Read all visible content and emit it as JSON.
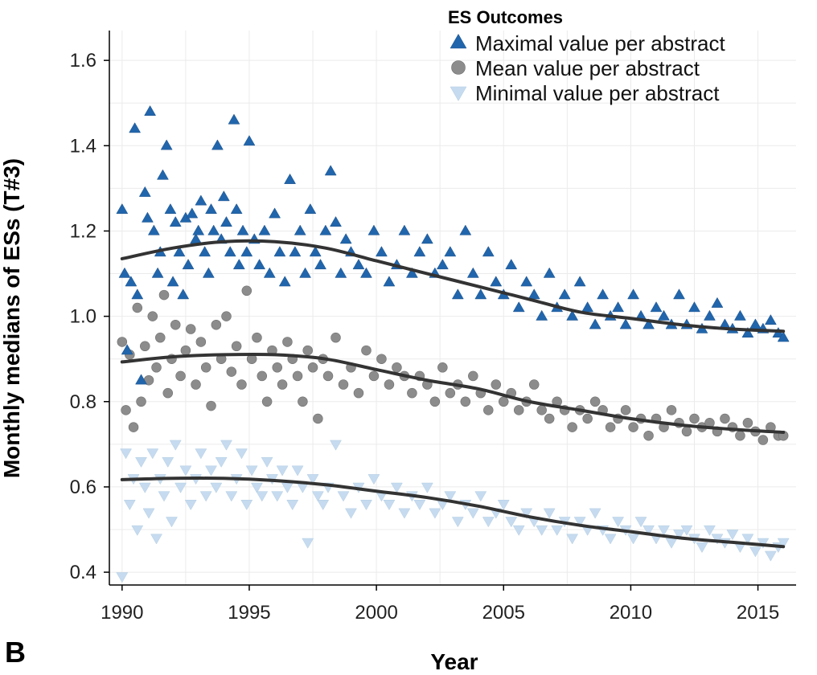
{
  "panel_label": "B",
  "chart_data": {
    "type": "scatter",
    "title": "",
    "xlabel": "Year",
    "ylabel": "Monthly medians of ESs (T#3)",
    "xlim": [
      1989.5,
      2016.5
    ],
    "ylim": [
      0.37,
      1.67
    ],
    "x_ticks": [
      1990,
      1995,
      2000,
      2005,
      2010,
      2015
    ],
    "y_ticks": [
      0.4,
      0.6,
      0.8,
      1.0,
      1.2,
      1.4,
      1.6
    ],
    "y_tick_labels": [
      "0.4",
      "0.6",
      "0.8",
      "1.0",
      "1.2",
      "1.4",
      "1.6"
    ],
    "grid": true,
    "legend": {
      "title": "ES Outcomes",
      "position": "top-right"
    },
    "series": [
      {
        "name": "Maximal value per abstract",
        "marker": "triangle-up",
        "color": "#2166ac",
        "trend": [
          [
            1990,
            1.135
          ],
          [
            1992,
            1.16
          ],
          [
            1994,
            1.175
          ],
          [
            1996,
            1.175
          ],
          [
            1998,
            1.16
          ],
          [
            2000,
            1.13
          ],
          [
            2002,
            1.1
          ],
          [
            2004,
            1.07
          ],
          [
            2006,
            1.04
          ],
          [
            2008,
            1.01
          ],
          [
            2010,
            0.995
          ],
          [
            2012,
            0.98
          ],
          [
            2014,
            0.97
          ],
          [
            2016,
            0.965
          ]
        ],
        "x": [
          1990.0,
          1990.1,
          1990.2,
          1990.35,
          1990.5,
          1990.6,
          1990.75,
          1990.9,
          1991.0,
          1991.1,
          1991.25,
          1991.4,
          1991.5,
          1991.6,
          1991.75,
          1991.9,
          1992.0,
          1992.1,
          1992.25,
          1992.4,
          1992.5,
          1992.6,
          1992.75,
          1992.9,
          1993.0,
          1993.1,
          1993.25,
          1993.4,
          1993.5,
          1993.6,
          1993.75,
          1993.9,
          1994.0,
          1994.1,
          1994.25,
          1994.4,
          1994.5,
          1994.6,
          1994.75,
          1994.9,
          1995.0,
          1995.2,
          1995.4,
          1995.6,
          1995.8,
          1996.0,
          1996.2,
          1996.4,
          1996.6,
          1996.8,
          1997.0,
          1997.2,
          1997.4,
          1997.6,
          1997.8,
          1998.0,
          1998.2,
          1998.4,
          1998.6,
          1998.8,
          1999.0,
          1999.3,
          1999.6,
          1999.9,
          2000.2,
          2000.5,
          2000.8,
          2001.1,
          2001.4,
          2001.7,
          2002.0,
          2002.3,
          2002.6,
          2002.9,
          2003.2,
          2003.5,
          2003.8,
          2004.1,
          2004.4,
          2004.7,
          2005.0,
          2005.3,
          2005.6,
          2005.9,
          2006.2,
          2006.5,
          2006.8,
          2007.1,
          2007.4,
          2007.7,
          2008.0,
          2008.3,
          2008.6,
          2008.9,
          2009.2,
          2009.5,
          2009.8,
          2010.1,
          2010.4,
          2010.7,
          2011.0,
          2011.3,
          2011.6,
          2011.9,
          2012.2,
          2012.5,
          2012.8,
          2013.1,
          2013.4,
          2013.7,
          2014.0,
          2014.3,
          2014.6,
          2014.9,
          2015.2,
          2015.5,
          2015.8,
          2016.0
        ],
        "y": [
          1.25,
          1.1,
          0.92,
          1.08,
          1.44,
          1.05,
          0.85,
          1.29,
          1.23,
          1.48,
          1.2,
          1.1,
          1.15,
          1.33,
          1.4,
          1.25,
          1.08,
          1.22,
          1.15,
          1.05,
          1.23,
          1.12,
          1.24,
          1.18,
          1.2,
          1.27,
          1.15,
          1.1,
          1.25,
          1.2,
          1.4,
          1.18,
          1.28,
          1.22,
          1.15,
          1.46,
          1.25,
          1.12,
          1.2,
          1.15,
          1.41,
          1.18,
          1.12,
          1.2,
          1.1,
          1.24,
          1.15,
          1.08,
          1.32,
          1.15,
          1.2,
          1.1,
          1.25,
          1.15,
          1.12,
          1.2,
          1.34,
          1.22,
          1.1,
          1.18,
          1.15,
          1.12,
          1.1,
          1.2,
          1.15,
          1.08,
          1.12,
          1.2,
          1.1,
          1.15,
          1.18,
          1.1,
          1.12,
          1.15,
          1.05,
          1.2,
          1.1,
          1.05,
          1.15,
          1.08,
          1.05,
          1.12,
          1.02,
          1.08,
          1.05,
          1.0,
          1.1,
          1.02,
          1.05,
          1.0,
          1.08,
          1.02,
          0.98,
          1.05,
          1.0,
          1.02,
          0.98,
          1.05,
          1.0,
          0.98,
          1.02,
          1.0,
          0.98,
          1.05,
          0.98,
          1.02,
          0.97,
          1.0,
          1.03,
          0.98,
          0.97,
          1.0,
          0.96,
          0.98,
          0.97,
          0.99,
          0.96,
          0.95
        ]
      },
      {
        "name": "Mean value per abstract",
        "marker": "circle",
        "color": "#8c8c8c",
        "trend": [
          [
            1990,
            0.893
          ],
          [
            1992,
            0.905
          ],
          [
            1994,
            0.91
          ],
          [
            1996,
            0.91
          ],
          [
            1998,
            0.9
          ],
          [
            2000,
            0.875
          ],
          [
            2002,
            0.85
          ],
          [
            2004,
            0.83
          ],
          [
            2006,
            0.8
          ],
          [
            2008,
            0.78
          ],
          [
            2010,
            0.76
          ],
          [
            2012,
            0.745
          ],
          [
            2014,
            0.735
          ],
          [
            2016,
            0.728
          ]
        ],
        "x": [
          1990.0,
          1990.15,
          1990.3,
          1990.45,
          1990.6,
          1990.75,
          1990.9,
          1991.05,
          1991.2,
          1991.35,
          1991.5,
          1991.65,
          1991.8,
          1991.95,
          1992.1,
          1992.3,
          1992.5,
          1992.7,
          1992.9,
          1993.1,
          1993.3,
          1993.5,
          1993.7,
          1993.9,
          1994.1,
          1994.3,
          1994.5,
          1994.7,
          1994.9,
          1995.1,
          1995.3,
          1995.5,
          1995.7,
          1995.9,
          1996.1,
          1996.3,
          1996.5,
          1996.7,
          1996.9,
          1997.1,
          1997.3,
          1997.5,
          1997.7,
          1997.9,
          1998.1,
          1998.4,
          1998.7,
          1999.0,
          1999.3,
          1999.6,
          1999.9,
          2000.2,
          2000.5,
          2000.8,
          2001.1,
          2001.4,
          2001.7,
          2002.0,
          2002.3,
          2002.6,
          2002.9,
          2003.2,
          2003.5,
          2003.8,
          2004.1,
          2004.4,
          2004.7,
          2005.0,
          2005.3,
          2005.6,
          2005.9,
          2006.2,
          2006.5,
          2006.8,
          2007.1,
          2007.4,
          2007.7,
          2008.0,
          2008.3,
          2008.6,
          2008.9,
          2009.2,
          2009.5,
          2009.8,
          2010.1,
          2010.4,
          2010.7,
          2011.0,
          2011.3,
          2011.6,
          2011.9,
          2012.2,
          2012.5,
          2012.8,
          2013.1,
          2013.4,
          2013.7,
          2014.0,
          2014.3,
          2014.6,
          2014.9,
          2015.2,
          2015.5,
          2015.8,
          2016.0
        ],
        "y": [
          0.94,
          0.78,
          0.91,
          0.74,
          1.02,
          0.8,
          0.93,
          0.85,
          1.0,
          0.88,
          0.95,
          1.05,
          0.82,
          0.9,
          0.98,
          0.86,
          0.92,
          0.97,
          0.84,
          0.94,
          0.88,
          0.79,
          0.98,
          0.9,
          1.0,
          0.87,
          0.93,
          0.84,
          1.06,
          0.9,
          0.95,
          0.86,
          0.8,
          0.92,
          0.88,
          0.84,
          0.94,
          0.9,
          0.86,
          0.8,
          0.92,
          0.88,
          0.76,
          0.9,
          0.86,
          0.95,
          0.84,
          0.88,
          0.82,
          0.92,
          0.86,
          0.9,
          0.84,
          0.88,
          0.86,
          0.82,
          0.86,
          0.84,
          0.8,
          0.88,
          0.82,
          0.84,
          0.8,
          0.86,
          0.82,
          0.78,
          0.84,
          0.8,
          0.82,
          0.78,
          0.8,
          0.84,
          0.78,
          0.76,
          0.8,
          0.78,
          0.74,
          0.78,
          0.76,
          0.8,
          0.78,
          0.74,
          0.76,
          0.78,
          0.74,
          0.76,
          0.72,
          0.76,
          0.74,
          0.78,
          0.75,
          0.73,
          0.76,
          0.74,
          0.75,
          0.73,
          0.76,
          0.74,
          0.72,
          0.75,
          0.73,
          0.71,
          0.74,
          0.72,
          0.72
        ]
      },
      {
        "name": "Minimal value per abstract",
        "marker": "triangle-down",
        "color": "#c6dbef",
        "trend": [
          [
            1990,
            0.617
          ],
          [
            1992,
            0.62
          ],
          [
            1994,
            0.62
          ],
          [
            1996,
            0.615
          ],
          [
            1998,
            0.605
          ],
          [
            2000,
            0.59
          ],
          [
            2002,
            0.575
          ],
          [
            2004,
            0.555
          ],
          [
            2006,
            0.53
          ],
          [
            2008,
            0.51
          ],
          [
            2010,
            0.495
          ],
          [
            2012,
            0.48
          ],
          [
            2014,
            0.47
          ],
          [
            2016,
            0.46
          ]
        ],
        "x": [
          1990.0,
          1990.15,
          1990.3,
          1990.45,
          1990.6,
          1990.75,
          1990.9,
          1991.05,
          1991.2,
          1991.35,
          1991.5,
          1991.65,
          1991.8,
          1991.95,
          1992.1,
          1992.3,
          1992.5,
          1992.7,
          1992.9,
          1993.1,
          1993.3,
          1993.5,
          1993.7,
          1993.9,
          1994.1,
          1994.3,
          1994.5,
          1994.7,
          1994.9,
          1995.1,
          1995.3,
          1995.5,
          1995.7,
          1995.9,
          1996.1,
          1996.3,
          1996.5,
          1996.7,
          1996.9,
          1997.1,
          1997.3,
          1997.5,
          1997.7,
          1997.9,
          1998.1,
          1998.4,
          1998.7,
          1999.0,
          1999.3,
          1999.6,
          1999.9,
          2000.2,
          2000.5,
          2000.8,
          2001.1,
          2001.4,
          2001.7,
          2002.0,
          2002.3,
          2002.6,
          2002.9,
          2003.2,
          2003.5,
          2003.8,
          2004.1,
          2004.4,
          2004.7,
          2005.0,
          2005.3,
          2005.6,
          2005.9,
          2006.2,
          2006.5,
          2006.8,
          2007.1,
          2007.4,
          2007.7,
          2008.0,
          2008.3,
          2008.6,
          2008.9,
          2009.2,
          2009.5,
          2009.8,
          2010.1,
          2010.4,
          2010.7,
          2011.0,
          2011.3,
          2011.6,
          2011.9,
          2012.2,
          2012.5,
          2012.8,
          2013.1,
          2013.4,
          2013.7,
          2014.0,
          2014.3,
          2014.6,
          2014.9,
          2015.2,
          2015.5,
          2015.8,
          2016.0
        ],
        "y": [
          0.39,
          0.68,
          0.56,
          0.62,
          0.5,
          0.66,
          0.6,
          0.54,
          0.68,
          0.48,
          0.62,
          0.58,
          0.66,
          0.52,
          0.7,
          0.6,
          0.64,
          0.56,
          0.62,
          0.68,
          0.58,
          0.64,
          0.6,
          0.66,
          0.7,
          0.58,
          0.62,
          0.68,
          0.56,
          0.64,
          0.6,
          0.58,
          0.66,
          0.62,
          0.58,
          0.64,
          0.6,
          0.56,
          0.64,
          0.6,
          0.47,
          0.62,
          0.58,
          0.56,
          0.6,
          0.7,
          0.58,
          0.54,
          0.6,
          0.56,
          0.62,
          0.58,
          0.56,
          0.6,
          0.54,
          0.58,
          0.56,
          0.6,
          0.54,
          0.56,
          0.58,
          0.52,
          0.56,
          0.54,
          0.58,
          0.52,
          0.54,
          0.56,
          0.52,
          0.5,
          0.54,
          0.52,
          0.5,
          0.54,
          0.5,
          0.52,
          0.48,
          0.52,
          0.5,
          0.54,
          0.5,
          0.48,
          0.52,
          0.5,
          0.48,
          0.52,
          0.5,
          0.48,
          0.5,
          0.47,
          0.49,
          0.5,
          0.48,
          0.46,
          0.5,
          0.48,
          0.47,
          0.49,
          0.46,
          0.48,
          0.45,
          0.47,
          0.44,
          0.46,
          0.47
        ]
      }
    ]
  }
}
